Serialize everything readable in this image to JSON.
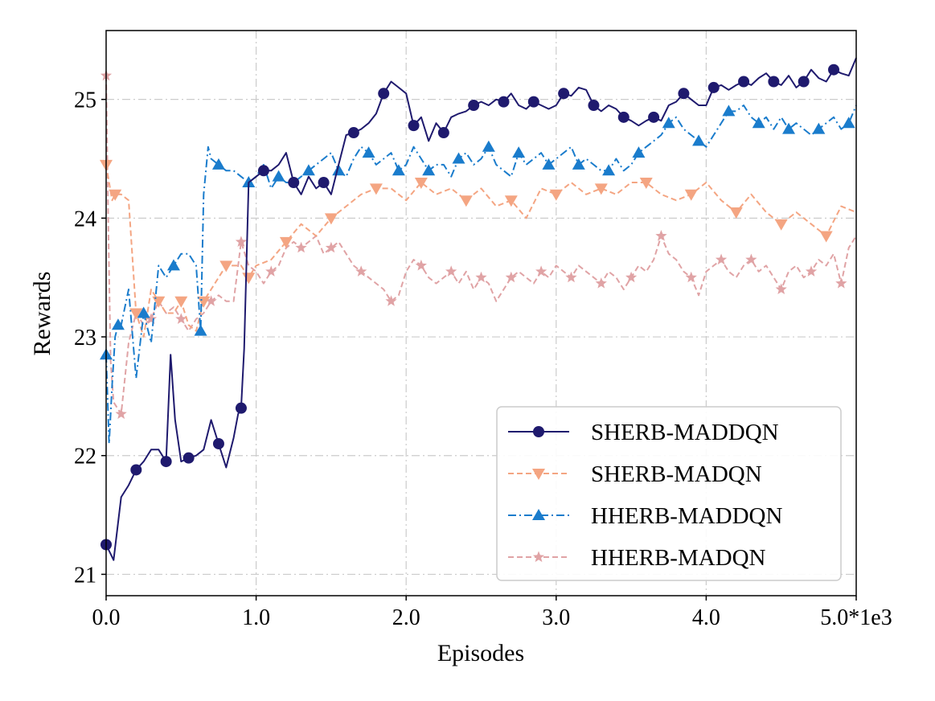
{
  "chart_data": {
    "type": "line",
    "title": "",
    "xlabel": "Episodes",
    "ylabel": "Rewards",
    "xlim": [
      0,
      5000
    ],
    "ylim": [
      20.82,
      25.58
    ],
    "x_ticks": [
      0,
      1000,
      2000,
      3000,
      4000,
      5000
    ],
    "x_tick_labels": [
      "0.0",
      "1.0",
      "2.0",
      "3.0",
      "4.0",
      "5.0*1e3"
    ],
    "y_ticks": [
      21,
      22,
      23,
      24,
      25
    ],
    "y_tick_labels": [
      "21",
      "22",
      "23",
      "24",
      "25"
    ],
    "grid": true,
    "legend_position": "lower-right",
    "series": [
      {
        "name": "SHERB-MADDQN",
        "color": "#1f1a6e",
        "linestyle": "solid",
        "marker": "circle",
        "x": [
          0,
          50,
          100,
          150,
          200,
          250,
          300,
          350,
          400,
          430,
          460,
          500,
          550,
          600,
          650,
          700,
          750,
          800,
          850,
          880,
          900,
          920,
          950,
          1000,
          1050,
          1100,
          1150,
          1200,
          1250,
          1300,
          1350,
          1400,
          1450,
          1500,
          1550,
          1600,
          1650,
          1700,
          1750,
          1800,
          1850,
          1900,
          1950,
          2000,
          2050,
          2100,
          2150,
          2200,
          2250,
          2300,
          2350,
          2400,
          2450,
          2500,
          2550,
          2600,
          2650,
          2700,
          2750,
          2800,
          2850,
          2900,
          2950,
          3000,
          3050,
          3100,
          3150,
          3200,
          3250,
          3300,
          3350,
          3400,
          3450,
          3500,
          3550,
          3600,
          3650,
          3700,
          3750,
          3800,
          3850,
          3900,
          3950,
          4000,
          4050,
          4100,
          4150,
          4200,
          4250,
          4300,
          4350,
          4400,
          4450,
          4500,
          4550,
          4600,
          4650,
          4700,
          4750,
          4800,
          4850,
          4900,
          4950,
          5000
        ],
        "values": [
          21.25,
          21.12,
          21.65,
          21.75,
          21.88,
          21.95,
          22.05,
          22.05,
          21.95,
          22.85,
          22.3,
          21.95,
          21.98,
          22.0,
          22.05,
          22.3,
          22.1,
          21.9,
          22.15,
          22.35,
          22.4,
          22.9,
          24.3,
          24.35,
          24.4,
          24.4,
          24.45,
          24.55,
          24.3,
          24.2,
          24.35,
          24.25,
          24.3,
          24.2,
          24.45,
          24.7,
          24.72,
          24.75,
          24.8,
          24.88,
          25.05,
          25.15,
          25.1,
          25.05,
          24.78,
          24.85,
          24.65,
          24.8,
          24.72,
          24.85,
          24.88,
          24.9,
          24.95,
          24.98,
          24.95,
          25.0,
          24.98,
          25.05,
          24.95,
          24.92,
          24.98,
          24.95,
          24.92,
          24.95,
          25.05,
          25.03,
          25.1,
          25.08,
          24.95,
          24.9,
          24.95,
          24.92,
          24.85,
          24.82,
          24.78,
          24.82,
          24.85,
          24.82,
          24.95,
          24.98,
          25.05,
          25.0,
          24.95,
          24.95,
          25.1,
          25.12,
          25.08,
          25.12,
          25.15,
          25.12,
          25.18,
          25.22,
          25.15,
          25.12,
          25.2,
          25.1,
          25.15,
          25.25,
          25.18,
          25.15,
          25.25,
          25.22,
          25.2,
          25.35
        ]
      },
      {
        "name": "SHERB-MADQN",
        "color": "#f4a582",
        "linestyle": "dashed",
        "marker": "triangle-down",
        "x": [
          0,
          20,
          40,
          60,
          100,
          150,
          200,
          250,
          300,
          350,
          400,
          450,
          500,
          550,
          600,
          650,
          700,
          750,
          800,
          850,
          900,
          950,
          1000,
          1100,
          1200,
          1300,
          1400,
          1500,
          1600,
          1700,
          1800,
          1900,
          2000,
          2100,
          2200,
          2300,
          2400,
          2500,
          2600,
          2700,
          2800,
          2900,
          3000,
          3100,
          3200,
          3300,
          3400,
          3500,
          3600,
          3700,
          3800,
          3900,
          4000,
          4100,
          4200,
          4300,
          4400,
          4500,
          4600,
          4700,
          4800,
          4900,
          5000
        ],
        "values": [
          24.45,
          24.3,
          24.15,
          24.2,
          24.2,
          24.15,
          23.2,
          23.0,
          23.4,
          23.3,
          23.2,
          23.2,
          23.3,
          23.1,
          23.05,
          23.3,
          23.4,
          23.5,
          23.6,
          23.6,
          23.6,
          23.5,
          23.6,
          23.65,
          23.8,
          23.95,
          23.85,
          24.0,
          24.1,
          24.2,
          24.25,
          24.25,
          24.15,
          24.3,
          24.2,
          24.25,
          24.15,
          24.25,
          24.1,
          24.15,
          24.0,
          24.25,
          24.2,
          24.3,
          24.2,
          24.25,
          24.2,
          24.3,
          24.3,
          24.2,
          24.15,
          24.2,
          24.3,
          24.15,
          24.05,
          24.2,
          24.05,
          23.95,
          24.05,
          23.95,
          23.85,
          24.1,
          24.05
        ]
      },
      {
        "name": "HHERB-MADDQN",
        "color": "#1a7ccc",
        "linestyle": "dashdot",
        "marker": "triangle-up",
        "x": [
          0,
          20,
          40,
          60,
          80,
          100,
          150,
          200,
          250,
          300,
          350,
          400,
          450,
          500,
          550,
          600,
          630,
          650,
          680,
          700,
          750,
          800,
          850,
          900,
          950,
          1000,
          1050,
          1100,
          1150,
          1200,
          1250,
          1300,
          1350,
          1400,
          1450,
          1500,
          1550,
          1600,
          1650,
          1700,
          1750,
          1800,
          1850,
          1900,
          1950,
          2000,
          2050,
          2100,
          2150,
          2200,
          2250,
          2300,
          2350,
          2400,
          2450,
          2500,
          2550,
          2600,
          2650,
          2700,
          2750,
          2800,
          2850,
          2900,
          2950,
          3000,
          3050,
          3100,
          3150,
          3200,
          3250,
          3300,
          3350,
          3400,
          3450,
          3500,
          3550,
          3600,
          3650,
          3700,
          3750,
          3800,
          3850,
          3900,
          3950,
          4000,
          4050,
          4100,
          4150,
          4200,
          4250,
          4300,
          4350,
          4400,
          4450,
          4500,
          4550,
          4600,
          4650,
          4700,
          4750,
          4800,
          4850,
          4900,
          4950,
          5000
        ],
        "values": [
          22.85,
          22.1,
          22.6,
          23.0,
          23.1,
          23.1,
          23.4,
          22.65,
          23.2,
          22.95,
          23.6,
          23.5,
          23.6,
          23.7,
          23.7,
          23.6,
          23.05,
          24.2,
          24.6,
          24.5,
          24.45,
          24.4,
          24.4,
          24.35,
          24.3,
          24.35,
          24.45,
          24.25,
          24.35,
          24.3,
          24.3,
          24.35,
          24.4,
          24.45,
          24.5,
          24.55,
          24.4,
          24.35,
          24.5,
          24.6,
          24.55,
          24.45,
          24.5,
          24.55,
          24.4,
          24.45,
          24.6,
          24.5,
          24.4,
          24.45,
          24.45,
          24.35,
          24.5,
          24.55,
          24.45,
          24.5,
          24.6,
          24.45,
          24.4,
          24.35,
          24.55,
          24.45,
          24.5,
          24.55,
          24.45,
          24.5,
          24.55,
          24.6,
          24.45,
          24.5,
          24.45,
          24.4,
          24.4,
          24.5,
          24.4,
          24.45,
          24.55,
          24.6,
          24.65,
          24.7,
          24.8,
          24.85,
          24.75,
          24.7,
          24.65,
          24.6,
          24.7,
          24.8,
          24.9,
          24.9,
          24.95,
          24.85,
          24.8,
          24.85,
          24.75,
          24.85,
          24.75,
          24.8,
          24.75,
          24.7,
          24.75,
          24.8,
          24.85,
          24.75,
          24.8,
          24.95
        ]
      },
      {
        "name": "HHERB-MADQN",
        "color": "#e0a3a5",
        "linestyle": "dashed",
        "marker": "star",
        "x": [
          0,
          15,
          30,
          50,
          100,
          150,
          200,
          250,
          300,
          350,
          400,
          450,
          500,
          550,
          600,
          650,
          700,
          750,
          800,
          850,
          900,
          950,
          1000,
          1050,
          1100,
          1150,
          1200,
          1250,
          1300,
          1350,
          1400,
          1450,
          1500,
          1550,
          1600,
          1650,
          1700,
          1750,
          1800,
          1850,
          1900,
          1950,
          2000,
          2050,
          2100,
          2150,
          2200,
          2250,
          2300,
          2350,
          2400,
          2450,
          2500,
          2550,
          2600,
          2650,
          2700,
          2750,
          2800,
          2850,
          2900,
          2950,
          3000,
          3050,
          3100,
          3150,
          3200,
          3250,
          3300,
          3350,
          3400,
          3450,
          3500,
          3550,
          3600,
          3650,
          3700,
          3750,
          3800,
          3850,
          3900,
          3950,
          4000,
          4050,
          4100,
          4150,
          4200,
          4250,
          4300,
          4350,
          4400,
          4450,
          4500,
          4550,
          4600,
          4650,
          4700,
          4750,
          4800,
          4850,
          4900,
          4950,
          5000
        ],
        "values": [
          25.2,
          23.9,
          22.8,
          22.45,
          22.35,
          22.95,
          23.2,
          23.1,
          23.15,
          23.3,
          23.2,
          23.25,
          23.15,
          23.05,
          23.15,
          23.2,
          23.3,
          23.35,
          23.3,
          23.3,
          23.8,
          23.6,
          23.55,
          23.45,
          23.55,
          23.6,
          23.75,
          23.8,
          23.75,
          23.8,
          23.85,
          23.7,
          23.75,
          23.8,
          23.7,
          23.6,
          23.55,
          23.5,
          23.45,
          23.4,
          23.3,
          23.35,
          23.55,
          23.65,
          23.6,
          23.5,
          23.45,
          23.5,
          23.55,
          23.45,
          23.55,
          23.4,
          23.5,
          23.45,
          23.3,
          23.4,
          23.5,
          23.55,
          23.5,
          23.45,
          23.55,
          23.5,
          23.6,
          23.55,
          23.5,
          23.6,
          23.55,
          23.5,
          23.45,
          23.55,
          23.5,
          23.4,
          23.5,
          23.6,
          23.55,
          23.65,
          23.85,
          23.7,
          23.65,
          23.55,
          23.5,
          23.35,
          23.55,
          23.6,
          23.65,
          23.55,
          23.5,
          23.6,
          23.65,
          23.55,
          23.6,
          23.5,
          23.4,
          23.55,
          23.6,
          23.5,
          23.55,
          23.65,
          23.6,
          23.7,
          23.45,
          23.75,
          23.85
        ]
      }
    ]
  }
}
